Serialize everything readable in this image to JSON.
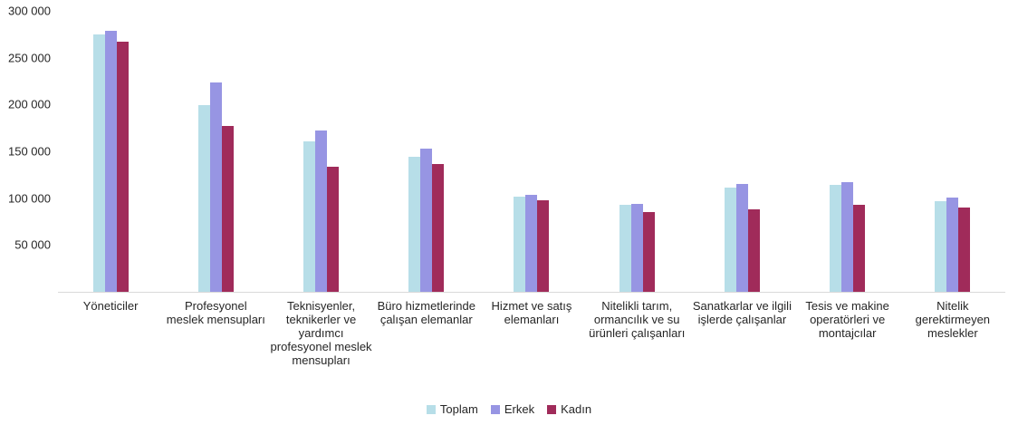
{
  "chart_data": {
    "type": "bar",
    "title": "",
    "xlabel": "",
    "ylabel": "",
    "grid": false,
    "legend_position": "bottom",
    "ylim": [
      0,
      300000
    ],
    "yticks": [
      300000,
      250000,
      200000,
      150000,
      100000,
      50000
    ],
    "ytick_labels": [
      "300 000",
      "250 000",
      "200 000",
      "150 000",
      "100 000",
      "50 000"
    ],
    "categories": [
      "Yöneticiler",
      "Profesyonel meslek mensupları",
      "Teknisyenler, teknikerler ve yardımcı profesyonel meslek mensupları",
      "Büro hizmetlerinde çalışan elemanlar",
      "Hizmet ve satış elemanları",
      "Nitelikli tarım, ormancılık ve su ürünleri çalışanları",
      "Sanatkarlar ve ilgili işlerde çalışanlar",
      "Tesis ve makine operatörleri ve montajcılar",
      "Nitelik gerektirmeyen meslekler"
    ],
    "series": [
      {
        "name": "Toplam",
        "key": "toplam",
        "color": "#b7dee8",
        "values": [
          275000,
          199000,
          161000,
          144000,
          102000,
          93000,
          111000,
          114000,
          97000
        ]
      },
      {
        "name": "Erkek",
        "key": "erkek",
        "color": "#9795e3",
        "values": [
          279000,
          224000,
          172000,
          153000,
          104000,
          94000,
          115000,
          117000,
          101000
        ]
      },
      {
        "name": "Kadın",
        "key": "kadin",
        "color": "#a02b5a",
        "values": [
          267000,
          177000,
          134000,
          136000,
          98000,
          85000,
          88000,
          93000,
          90000
        ]
      }
    ]
  }
}
